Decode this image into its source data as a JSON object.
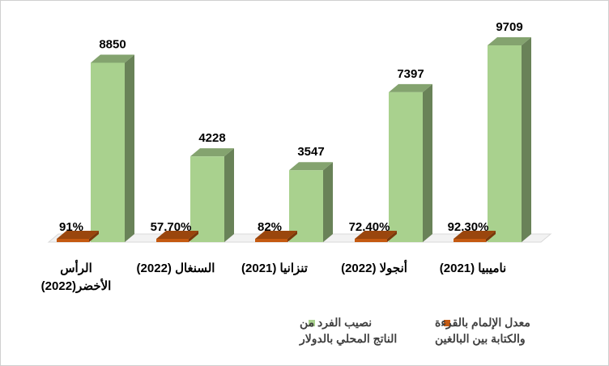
{
  "chart_data": {
    "type": "bar",
    "categories": [
      "ناميبيا (2021)",
      "أنجولا (2022)",
      "تنزانيا (2021)",
      "السنغال (2022)",
      "الرأس الأخضر(2022)"
    ],
    "category_lines": [
      [
        "ناميبيا (2021)"
      ],
      [
        "أنجولا (2022)"
      ],
      [
        "تنزانيا (2021)"
      ],
      [
        "السنغال (2022)"
      ],
      [
        "الرأس",
        "الأخضر(2022)"
      ]
    ],
    "series": [
      {
        "name": "معدل الإلمام بالقرءة والكتابة بين البالغين",
        "name_lines": [
          "معدل الإلمام بالقرءة",
          "والكتابة بين البالغين"
        ],
        "values": [
          92.3,
          72.4,
          82,
          57.7,
          91
        ],
        "labels": [
          "92.30%",
          "72.40%",
          "82%",
          "57.70%",
          "91%"
        ],
        "color": "#c55a11"
      },
      {
        "name": "نصيب الفرد من الناتج المحلي بالدولار",
        "name_lines": [
          "نصيب الفرد من",
          "الناتج المحلي بالدولار"
        ],
        "values": [
          9709,
          7397,
          3547,
          4228,
          8850
        ],
        "labels": [
          "9709",
          "7397",
          "3547",
          "4228",
          "8850"
        ],
        "color": "#a9d18e"
      }
    ],
    "ylim": [
      0,
      10000
    ],
    "grid": false,
    "legend_position": "bottom",
    "direction": "rtl"
  }
}
